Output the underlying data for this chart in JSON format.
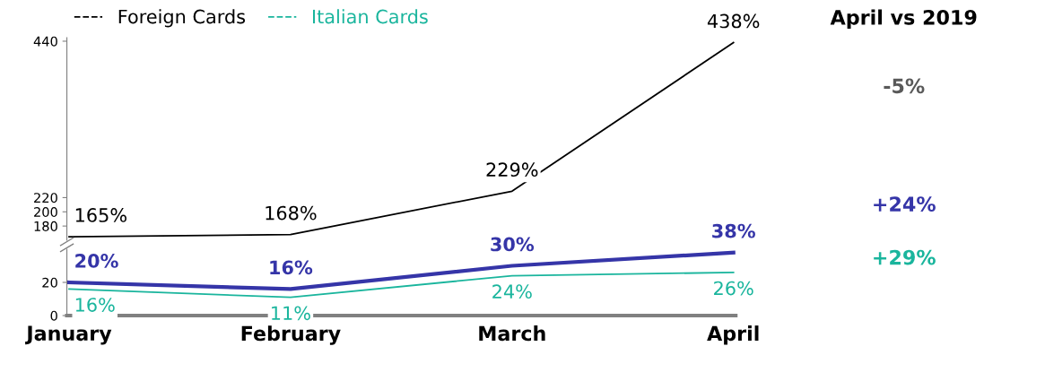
{
  "chart_data": [
    {
      "type": "line",
      "categories": [
        null,
        null,
        null,
        null
      ],
      "series": [
        {
          "name": "Foreign Cards",
          "color": "#000000",
          "values": [
            165,
            168,
            229,
            438
          ],
          "value_labels": [
            "165%",
            "168%",
            "229%",
            "438%"
          ]
        }
      ],
      "ylim": [
        160,
        445
      ],
      "yticks": [
        180,
        200,
        220,
        440
      ],
      "tick_labels": "y",
      "annotations": [
        "April vs 2019",
        "-5%",
        "+24%",
        "+29%"
      ],
      "legend": "top left",
      "grid": false,
      "marker": "none",
      "line_style": "solid"
    },
    {
      "type": "line",
      "categories": [
        "January",
        "February",
        "March",
        "April"
      ],
      "series": [
        {
          "name": "Italian Cards",
          "color": "#1ab59d",
          "values": [
            16,
            11,
            24,
            26
          ],
          "value_labels": [
            "16%",
            "11%",
            "24%",
            "26%"
          ]
        },
        {
          "color": "#3535a8",
          "values": [
            20,
            16,
            30,
            38
          ],
          "value_labels": [
            "20%",
            "16%",
            "30%",
            "38%"
          ]
        }
      ],
      "ylim": [
        0,
        40
      ],
      "yticks": [
        0,
        20
      ],
      "grid": false,
      "marker": "none",
      "line_style": "solid"
    }
  ]
}
